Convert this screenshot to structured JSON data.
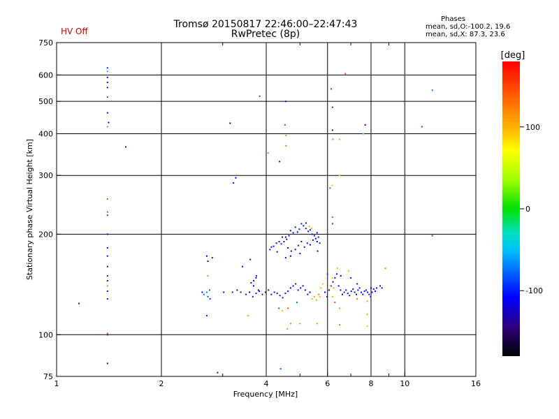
{
  "header": {
    "title_line1": "Tromsø 20150817 22:46:00–22:47:43",
    "title_line2": "RwPretec (8p)",
    "hv_status": "HV Off",
    "hv_color": "#cc0000",
    "phases_title": "Phases",
    "phases_o": "mean, sd,O:-100.2, 19.6",
    "phases_x": "mean, sd,X:  87.3, 23.6"
  },
  "chart_data": {
    "type": "scatter",
    "xlabel": "Frequency [MHz]",
    "ylabel": "Stationary phase Virtual Height [km]",
    "x_scale": "log",
    "y_scale": "log",
    "xlim": [
      1,
      16
    ],
    "ylim": [
      75,
      750
    ],
    "grid": true,
    "x_ticks": [
      1,
      2,
      4,
      6,
      8,
      10,
      16
    ],
    "x_tick_labels": [
      "1",
      "2",
      "4",
      "6",
      "8",
      "10",
      "16"
    ],
    "x_gridlines": [
      2,
      4,
      6,
      8,
      10
    ],
    "x_minor_ticks": [
      3,
      5,
      7,
      9
    ],
    "y_ticks": [
      75,
      100,
      200,
      300,
      400,
      500,
      600,
      750
    ],
    "y_tick_labels": [
      "75",
      "100",
      "200",
      "300",
      "400",
      "500",
      "600",
      "750"
    ],
    "colorbar": {
      "unit": "[deg]",
      "range": [
        -180,
        180
      ],
      "ticks": [
        100,
        0,
        -100
      ],
      "tick_labels": [
        "100",
        "0",
        "-100"
      ]
    },
    "points": [
      [
        1.4,
        630,
        -95
      ],
      [
        1.4,
        615,
        -40
      ],
      [
        1.4,
        590,
        -110
      ],
      [
        1.4,
        570,
        -110
      ],
      [
        1.4,
        550,
        -115
      ],
      [
        1.4,
        515,
        -80
      ],
      [
        1.4,
        462,
        -105
      ],
      [
        1.41,
        432,
        -110
      ],
      [
        1.4,
        420,
        130
      ],
      [
        1.4,
        255,
        150
      ],
      [
        1.4,
        233,
        140
      ],
      [
        1.4,
        228,
        -80
      ],
      [
        1.4,
        200,
        -110
      ],
      [
        1.4,
        182,
        -110
      ],
      [
        1.4,
        172,
        -115
      ],
      [
        1.4,
        160,
        -125
      ],
      [
        1.4,
        150,
        -130
      ],
      [
        1.4,
        145,
        -120
      ],
      [
        1.4,
        140,
        120
      ],
      [
        1.4,
        135,
        -110
      ],
      [
        1.4,
        128,
        -110
      ],
      [
        1.4,
        101,
        130
      ],
      [
        1.4,
        100,
        -135
      ],
      [
        1.4,
        82,
        -110
      ],
      [
        1.16,
        124,
        -125
      ],
      [
        1.58,
        365,
        -135
      ],
      [
        3.15,
        430,
        -125
      ],
      [
        3.22,
        285,
        -115
      ],
      [
        3.27,
        295,
        -110
      ],
      [
        3.83,
        518,
        -85
      ],
      [
        4.05,
        350,
        130
      ],
      [
        4.37,
        330,
        -100
      ],
      [
        4.55,
        500,
        -140
      ],
      [
        4.53,
        425,
        150
      ],
      [
        4.56,
        395,
        120
      ],
      [
        4.56,
        368,
        130
      ],
      [
        6.15,
        545,
        -80
      ],
      [
        6.2,
        480,
        -95
      ],
      [
        6.2,
        410,
        -140
      ],
      [
        6.22,
        385,
        130
      ],
      [
        6.5,
        385,
        110
      ],
      [
        6.75,
        605,
        150
      ],
      [
        7.7,
        425,
        -110
      ],
      [
        7.6,
        400,
        20
      ],
      [
        11.2,
        420,
        -85
      ],
      [
        12.0,
        540,
        -75
      ],
      [
        6.1,
        275,
        -70
      ],
      [
        6.2,
        280,
        40
      ],
      [
        6.5,
        300,
        95
      ],
      [
        6.2,
        225,
        150
      ],
      [
        6.2,
        215,
        -85
      ],
      [
        12.0,
        198,
        -80
      ],
      [
        4.1,
        180,
        -110
      ],
      [
        4.14,
        183,
        -105
      ],
      [
        4.2,
        184,
        -110
      ],
      [
        4.28,
        188,
        -110
      ],
      [
        4.36,
        190,
        -105
      ],
      [
        4.42,
        187,
        -100
      ],
      [
        4.5,
        190,
        -105
      ],
      [
        4.58,
        193,
        -110
      ],
      [
        4.65,
        198,
        -105
      ],
      [
        4.7,
        205,
        -110
      ],
      [
        4.78,
        202,
        -105
      ],
      [
        4.85,
        210,
        -100
      ],
      [
        4.92,
        203,
        -110
      ],
      [
        4.98,
        207,
        -105
      ],
      [
        5.05,
        215,
        -100
      ],
      [
        5.12,
        212,
        -105
      ],
      [
        5.2,
        208,
        -100
      ],
      [
        5.28,
        204,
        -105
      ],
      [
        5.35,
        206,
        -110
      ],
      [
        5.42,
        200,
        -105
      ],
      [
        5.5,
        198,
        -110
      ],
      [
        5.55,
        194,
        -105
      ],
      [
        5.6,
        190,
        -110
      ],
      [
        5.65,
        196,
        -105
      ],
      [
        5.7,
        188,
        -100
      ],
      [
        4.45,
        196,
        -110
      ],
      [
        4.55,
        196,
        -115
      ],
      [
        4.62,
        182,
        -110
      ],
      [
        4.72,
        178,
        -105
      ],
      [
        4.85,
        180,
        -110
      ],
      [
        4.95,
        185,
        -105
      ],
      [
        5.05,
        190,
        -110
      ],
      [
        5.15,
        183,
        -105
      ],
      [
        5.25,
        188,
        -100
      ],
      [
        5.35,
        186,
        -110
      ],
      [
        5.45,
        192,
        -105
      ],
      [
        5.32,
        211,
        100
      ],
      [
        5.4,
        208,
        110
      ],
      [
        5.2,
        216,
        -110
      ],
      [
        5.6,
        202,
        -105
      ],
      [
        4.3,
        177,
        -110
      ],
      [
        4.7,
        172,
        -110
      ],
      [
        5.0,
        175,
        -115
      ],
      [
        2.72,
        166,
        -110
      ],
      [
        2.8,
        170,
        -105
      ],
      [
        2.72,
        150,
        120
      ],
      [
        3.42,
        160,
        -110
      ],
      [
        3.6,
        168,
        -110
      ],
      [
        3.62,
        143,
        -115
      ],
      [
        3.68,
        145,
        -110
      ],
      [
        3.74,
        148,
        -105
      ],
      [
        3.68,
        140,
        -110
      ],
      [
        3.75,
        150,
        -100
      ],
      [
        3.8,
        136,
        -110
      ],
      [
        2.62,
        134,
        -110
      ],
      [
        2.65,
        132,
        -75
      ],
      [
        2.7,
        134,
        -70
      ],
      [
        2.75,
        136,
        -80
      ],
      [
        2.72,
        130,
        -85
      ],
      [
        2.76,
        128,
        -90
      ],
      [
        3.02,
        134,
        -110
      ],
      [
        3.2,
        134,
        -105
      ],
      [
        3.3,
        136,
        -110
      ],
      [
        3.38,
        134,
        -115
      ],
      [
        3.5,
        132,
        -105
      ],
      [
        3.58,
        134,
        -110
      ],
      [
        3.66,
        130,
        -115
      ],
      [
        3.74,
        133,
        -105
      ],
      [
        3.82,
        135,
        -110
      ],
      [
        3.9,
        132,
        -115
      ],
      [
        3.98,
        134,
        -110
      ],
      [
        4.06,
        136,
        -105
      ],
      [
        4.14,
        132,
        -110
      ],
      [
        4.22,
        134,
        -115
      ],
      [
        4.3,
        133,
        -105
      ],
      [
        4.38,
        131,
        -110
      ],
      [
        4.46,
        129,
        -115
      ],
      [
        4.54,
        133,
        -110
      ],
      [
        4.62,
        135,
        -105
      ],
      [
        4.7,
        138,
        -110
      ],
      [
        4.78,
        140,
        -115
      ],
      [
        4.86,
        142,
        -110
      ],
      [
        4.94,
        136,
        -105
      ],
      [
        5.02,
        138,
        -110
      ],
      [
        5.1,
        140,
        -115
      ],
      [
        5.18,
        136,
        -110
      ],
      [
        5.26,
        132,
        -105
      ],
      [
        5.34,
        134,
        -110
      ],
      [
        5.42,
        128,
        100
      ],
      [
        5.5,
        130,
        110
      ],
      [
        5.58,
        127,
        100
      ],
      [
        5.66,
        132,
        120
      ],
      [
        5.74,
        138,
        110
      ],
      [
        5.82,
        142,
        100
      ],
      [
        5.9,
        134,
        -110
      ],
      [
        5.98,
        130,
        -115
      ],
      [
        6.06,
        136,
        -110
      ],
      [
        6.14,
        140,
        -105
      ],
      [
        6.22,
        144,
        -110
      ],
      [
        6.3,
        148,
        -115
      ],
      [
        6.38,
        152,
        -110
      ],
      [
        6.46,
        140,
        -105
      ],
      [
        6.54,
        136,
        -110
      ],
      [
        6.62,
        132,
        -115
      ],
      [
        6.7,
        134,
        -110
      ],
      [
        6.78,
        136,
        -105
      ],
      [
        6.86,
        133,
        -110
      ],
      [
        6.94,
        131,
        -115
      ],
      [
        7.02,
        135,
        -110
      ],
      [
        7.1,
        137,
        -105
      ],
      [
        7.18,
        134,
        -110
      ],
      [
        7.26,
        132,
        -115
      ],
      [
        7.34,
        136,
        -110
      ],
      [
        7.42,
        138,
        -105
      ],
      [
        7.5,
        134,
        -110
      ],
      [
        7.58,
        132,
        -115
      ],
      [
        7.66,
        135,
        -110
      ],
      [
        7.74,
        136,
        -105
      ],
      [
        7.82,
        134,
        -110
      ],
      [
        7.9,
        132,
        -115
      ],
      [
        7.98,
        130,
        -110
      ],
      [
        8.06,
        134,
        -105
      ],
      [
        8.14,
        137,
        -110
      ],
      [
        8.22,
        135,
        -115
      ],
      [
        8.3,
        138,
        -110
      ],
      [
        7.3,
        142,
        -110
      ],
      [
        8.0,
        138,
        -110
      ],
      [
        7.3,
        128,
        130
      ],
      [
        7.8,
        126,
        110
      ],
      [
        8.5,
        140,
        -110
      ],
      [
        8.6,
        138,
        -105
      ],
      [
        6.4,
        158,
        100
      ],
      [
        6.0,
        152,
        -85
      ],
      [
        6.1,
        140,
        60
      ],
      [
        6.2,
        148,
        30
      ],
      [
        6.3,
        125,
        150
      ],
      [
        6.5,
        120,
        110
      ],
      [
        6.9,
        155,
        30
      ],
      [
        7.0,
        148,
        -110
      ],
      [
        6.2,
        130,
        110
      ],
      [
        6.25,
        138,
        110
      ],
      [
        6.55,
        150,
        -110
      ],
      [
        5.7,
        130,
        100
      ],
      [
        4.9,
        125,
        -80
      ],
      [
        4.62,
        120,
        150
      ],
      [
        4.35,
        120,
        -80
      ],
      [
        4.45,
        118,
        100
      ],
      [
        3.55,
        114,
        20
      ],
      [
        5.6,
        108,
        110
      ],
      [
        4.7,
        108,
        120
      ],
      [
        5.0,
        108,
        110
      ],
      [
        4.6,
        104,
        120
      ],
      [
        6.5,
        107,
        130
      ],
      [
        7.8,
        106,
        30
      ],
      [
        7.8,
        115,
        110
      ],
      [
        8.8,
        158,
        120
      ],
      [
        2.7,
        114,
        -100
      ],
      [
        2.9,
        77,
        -110
      ],
      [
        4.4,
        79,
        -80
      ],
      [
        2.7,
        172,
        -110
      ],
      [
        4.55,
        170,
        -110
      ],
      [
        5.62,
        178,
        -110
      ]
    ]
  }
}
